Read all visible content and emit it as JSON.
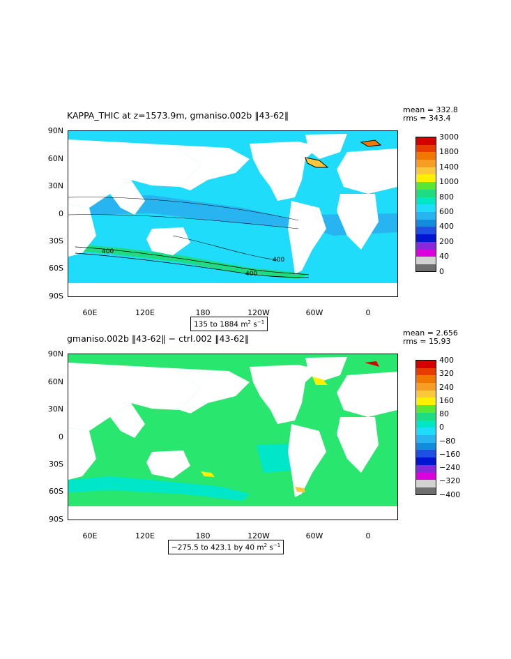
{
  "panels": [
    {
      "title": "KAPPA_THIC at z=1573.9m, gmaniso.002b ‖43-62‖",
      "stats": "mean = 332.8\nrms = 343.4",
      "units_prefix": "135 to 1884 m",
      "units_mid": " s",
      "units_exp1": "2",
      "units_exp2": "−1",
      "colorbar_labels": [
        "3000",
        "1800",
        "1400",
        "1000",
        "800",
        "600",
        "400",
        "200",
        "40",
        "0"
      ],
      "colorbar_colors": [
        "#d40000",
        "#e63c00",
        "#f07800",
        "#f59e23",
        "#fbc83c",
        "#fff000",
        "#5ae632",
        "#1edc82",
        "#00e6c8",
        "#1edcfa",
        "#28b4f0",
        "#148cdc",
        "#1e50e6",
        "#0014d2",
        "#8c28dc",
        "#dc00dc",
        "#d2d2d2",
        "#6e6e6e"
      ]
    },
    {
      "title": "gmaniso.002b ‖43-62‖ − ctrl.002 ‖43-62‖",
      "stats": "mean = 2.656\nrms = 15.93",
      "units_prefix": "−275.5 to 423.1 by 40 m",
      "units_mid": " s",
      "units_exp1": "2",
      "units_exp2": "−1",
      "colorbar_labels": [
        "400",
        "320",
        "240",
        "160",
        "80",
        "0",
        "−80",
        "−160",
        "−240",
        "−320",
        "−400"
      ],
      "colorbar_colors": [
        "#d40000",
        "#e63c00",
        "#f07800",
        "#f59e23",
        "#fbc83c",
        "#fff000",
        "#5ae632",
        "#1edc82",
        "#00e6c8",
        "#1edcfa",
        "#28b4f0",
        "#148cdc",
        "#1e50e6",
        "#0014d2",
        "#8c28dc",
        "#dc00dc",
        "#d2d2d2",
        "#6e6e6e"
      ]
    }
  ],
  "axes": {
    "y_labels": [
      "90N",
      "60N",
      "30N",
      "0",
      "30S",
      "60S",
      "90S"
    ],
    "x_labels": [
      "60E",
      "120E",
      "180",
      "120W",
      "60W",
      "0"
    ]
  },
  "contour_labels": [
    "400",
    "400",
    "400"
  ],
  "colors": {
    "ocean_top": "#1edcfa",
    "ocean_top_dark": "#28b4f0",
    "ocean_bottom": "#28e66e",
    "ocean_bottom_cyan": "#00e6c8",
    "land": "#ffffff"
  }
}
